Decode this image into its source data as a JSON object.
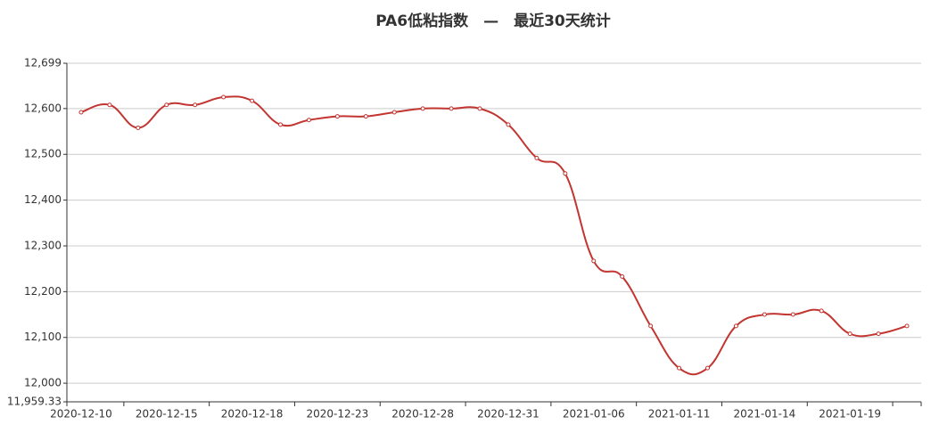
{
  "chart_data": {
    "type": "line",
    "title": "PA6低粘指数　—　最近30天统计",
    "categories": [
      "2020-12-10",
      null,
      null,
      "2020-12-15",
      null,
      null,
      "2020-12-18",
      null,
      null,
      "2020-12-23",
      null,
      null,
      "2020-12-28",
      null,
      null,
      "2020-12-31",
      null,
      null,
      "2021-01-06",
      null,
      null,
      "2021-01-11",
      null,
      null,
      "2021-01-14",
      null,
      null,
      "2021-01-19",
      null,
      null
    ],
    "series": [
      {
        "name": "PA6低粘指数",
        "color": "#c23531",
        "values": [
          12592,
          12608,
          12558,
          12608,
          12608,
          12625,
          12617,
          12565,
          12575,
          12583,
          12583,
          12592,
          12600,
          12600,
          12600,
          12565,
          12492,
          12458,
          12267,
          12233,
          12125,
          12033,
          12033,
          12125,
          12150,
          12150,
          12158,
          12108,
          12108,
          12125
        ]
      }
    ],
    "ylim": [
      11959.33,
      12699
    ],
    "yticks": [
      {
        "value": 11959.33,
        "label": "11,959.33"
      },
      {
        "value": 12000,
        "label": "12,000"
      },
      {
        "value": 12100,
        "label": "12,100"
      },
      {
        "value": 12200,
        "label": "12,200"
      },
      {
        "value": 12300,
        "label": "12,300"
      },
      {
        "value": 12400,
        "label": "12,400"
      },
      {
        "value": 12500,
        "label": "12,500"
      },
      {
        "value": 12600,
        "label": "12,600"
      },
      {
        "value": 12699,
        "label": "12,699"
      }
    ],
    "grid": true
  }
}
